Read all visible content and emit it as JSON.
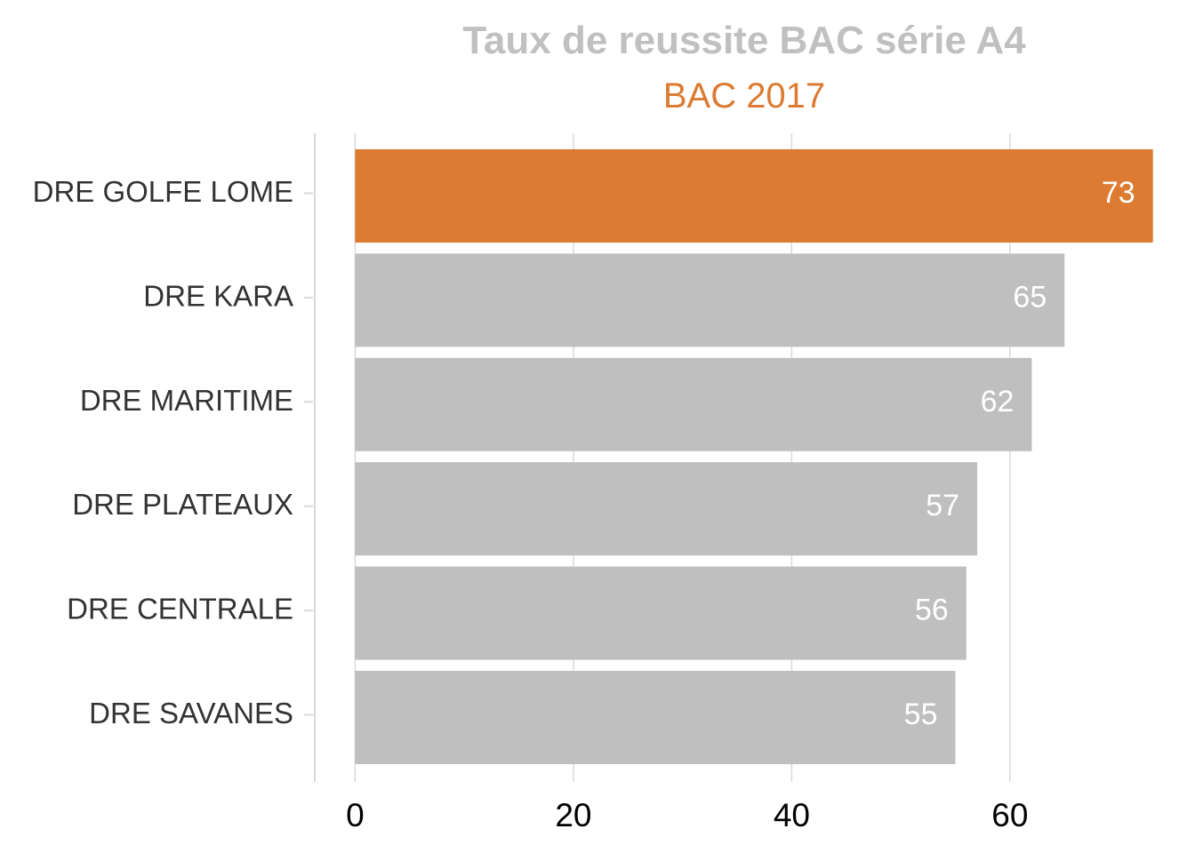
{
  "chart_data": {
    "type": "bar",
    "orientation": "horizontal",
    "title": "Taux de reussite BAC série A4",
    "subtitle": "BAC 2017",
    "categories": [
      "DRE GOLFE LOME",
      "DRE KARA",
      "DRE MARITIME",
      "DRE PLATEAUX",
      "DRE CENTRALE",
      "DRE SAVANES"
    ],
    "values": [
      73.1,
      65,
      62,
      57,
      56,
      55
    ],
    "value_labels": [
      "73",
      "65",
      "62",
      "57",
      "56",
      "55"
    ],
    "highlighted_category": "DRE GOLFE LOME",
    "x_ticks": [
      0,
      20,
      40,
      60
    ],
    "x_tick_labels": [
      "0",
      "20",
      "40",
      "60"
    ],
    "xlim": [
      -3.7,
      75
    ],
    "xlabel": "",
    "ylabel": "",
    "grid": "vertical-major",
    "legend": "none"
  },
  "colors": {
    "title": "#c0c0c0",
    "subtitle": "#dc7b31",
    "highlight_bar": "#dc7b31",
    "default_bar": "#bfbfbf",
    "grid": "#d9d9d9",
    "axis_line": "#d9d9d9"
  }
}
